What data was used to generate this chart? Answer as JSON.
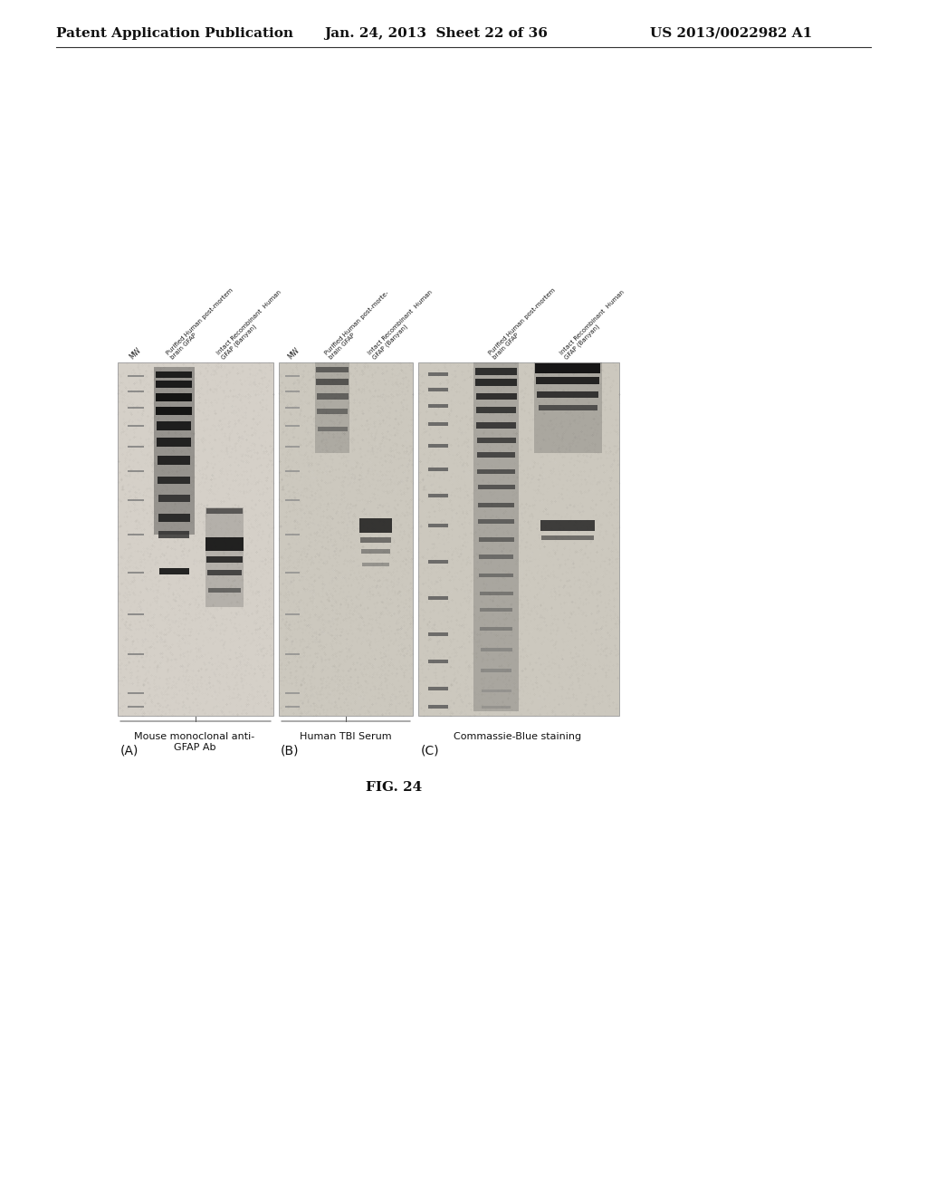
{
  "header_left": "Patent Application Publication",
  "header_center": "Jan. 24, 2013  Sheet 22 of 36",
  "header_right": "US 2013/0022982 A1",
  "fig_label": "FIG. 24",
  "bg_color": "#ffffff",
  "panel_bg_A": "#d8d4cc",
  "panel_bg_B": "#ccc8c0",
  "panel_bg_C": "#ccc8c0",
  "header_fontsize": 11,
  "label_fontsize": 6,
  "panel_label_fontsize": 10,
  "fig_label_fontsize": 11
}
